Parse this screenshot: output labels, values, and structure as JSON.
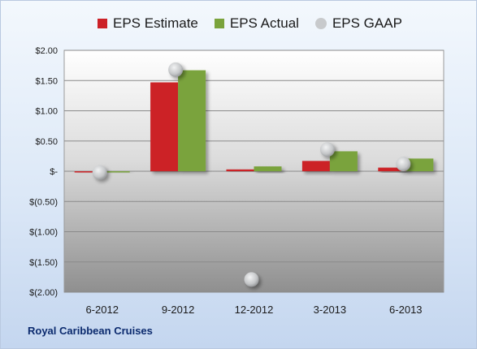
{
  "legend": {
    "estimate": "EPS Estimate",
    "actual": "EPS Actual",
    "gaap": "EPS GAAP"
  },
  "footer": {
    "company": "Royal Caribbean Cruises"
  },
  "colors": {
    "estimate": "#cc2127",
    "actual": "#7aa33c",
    "gaap": "#c8cacc"
  },
  "chart_data": {
    "type": "bar",
    "categories": [
      "6-2012",
      "9-2012",
      "12-2012",
      "3-2013",
      "6-2013"
    ],
    "series": [
      {
        "name": "EPS Estimate",
        "values": [
          -0.02,
          1.47,
          0.03,
          0.17,
          0.06
        ]
      },
      {
        "name": "EPS Actual",
        "values": [
          -0.01,
          1.67,
          0.08,
          0.33,
          0.21
        ]
      },
      {
        "name": "EPS GAAP",
        "values": [
          -0.02,
          1.68,
          -1.79,
          0.36,
          0.12
        ],
        "style": "marker"
      }
    ],
    "ylim": [
      -2.0,
      2.0
    ],
    "y_ticks": [
      2.0,
      1.5,
      1.0,
      0.5,
      0.0,
      -0.5,
      -1.0,
      -1.5,
      -2.0
    ],
    "y_tick_labels": [
      "$2.00",
      "$1.50",
      "$1.00",
      "$0.50",
      "$-",
      "$(0.50)",
      "$(1.00)",
      "$(1.50)",
      "$(2.00)"
    ],
    "grid": true,
    "legend_position": "top"
  }
}
